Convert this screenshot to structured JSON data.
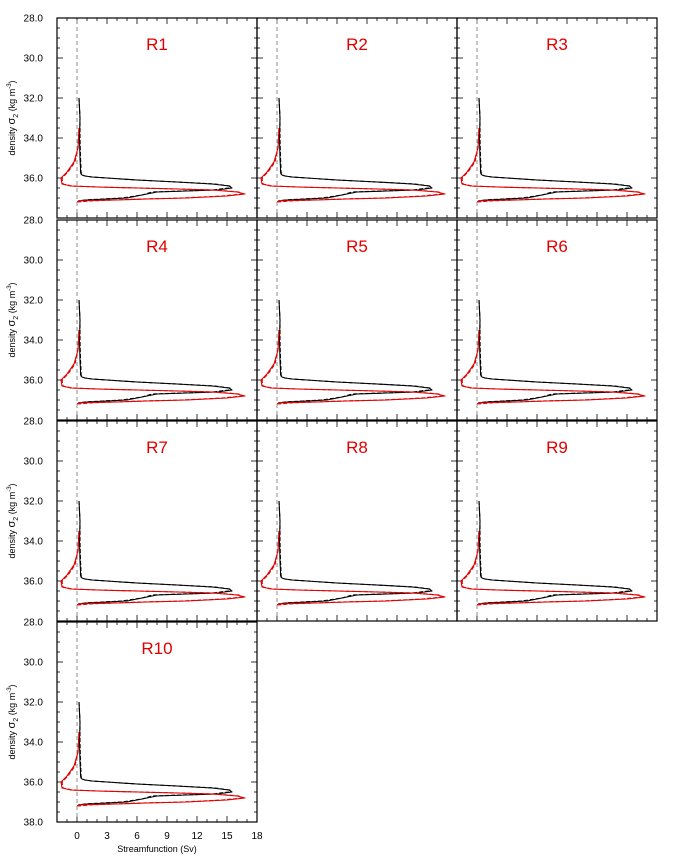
{
  "figure": {
    "ylabel_prefix": "density ",
    "ylabel_symbol": "σ",
    "ylabel_subscript": "2",
    "ylabel_units": " (kg m",
    "ylabel_exponent": "-3",
    "ylabel_close": ")",
    "xlabel": "Streamfunction (Sv)"
  },
  "chart_data": {
    "type": "line",
    "panels": [
      "R1",
      "R2",
      "R3",
      "R4",
      "R5",
      "R6",
      "R7",
      "R8",
      "R9",
      "R10"
    ],
    "xlim": [
      -2,
      18
    ],
    "ylim": [
      38.0,
      28.0
    ],
    "y_inverted": true,
    "xticks": [
      0,
      3,
      6,
      9,
      12,
      15,
      18
    ],
    "yticks": [
      28.0,
      30.0,
      32.0,
      34.0,
      36.0,
      38.0
    ],
    "xtick_labels": [
      "0",
      "3",
      "6",
      "9",
      "12",
      "15",
      "18"
    ],
    "ytick_labels": [
      "28.0",
      "30.0",
      "32.0",
      "34.0",
      "36.0",
      "38.0"
    ],
    "zero_line": {
      "x": 0,
      "style": "dashed",
      "color": "#808080"
    },
    "series": [
      {
        "color": "#000000",
        "style": "solid",
        "x": [
          0.2,
          0.3,
          0.25,
          0.3,
          0.35,
          0.35,
          0.4,
          0.5,
          0.8,
          1.5,
          3.0,
          6.0,
          10.0,
          13.5,
          15.2,
          15.5,
          14.0,
          11.0,
          8.0,
          7.0,
          5.0,
          3.0,
          1.0,
          0.1
        ],
        "y": [
          32.0,
          33.0,
          34.0,
          35.0,
          35.5,
          35.7,
          35.8,
          35.85,
          35.9,
          35.95,
          36.0,
          36.1,
          36.2,
          36.3,
          36.4,
          36.5,
          36.6,
          36.65,
          36.7,
          36.8,
          37.0,
          37.05,
          37.1,
          37.15
        ]
      },
      {
        "color": "#000000",
        "style": "dashed",
        "x": [
          0.2,
          0.3,
          0.3,
          0.35,
          0.4,
          0.4,
          0.5,
          0.8,
          1.5,
          3.0,
          6.0,
          10.0,
          13.8,
          15.3,
          15.2,
          13.5,
          10.5,
          7.5,
          6.5,
          4.5,
          2.5,
          0.8,
          0.1
        ],
        "y": [
          32.0,
          33.0,
          34.0,
          35.0,
          35.5,
          35.7,
          35.85,
          35.9,
          35.95,
          36.0,
          36.1,
          36.2,
          36.3,
          36.4,
          36.5,
          36.6,
          36.65,
          36.7,
          36.85,
          37.0,
          37.05,
          37.1,
          37.15
        ]
      },
      {
        "color": "#e00000",
        "style": "solid",
        "x": [
          0.2,
          0.1,
          -0.3,
          -1.0,
          -1.6,
          -1.5,
          -0.6,
          2.0,
          6.0,
          10.0,
          13.5,
          16.0,
          16.8,
          15.0,
          11.0,
          7.0,
          4.0,
          1.5,
          0.2,
          0.0
        ],
        "y": [
          33.5,
          34.5,
          35.2,
          35.7,
          36.0,
          36.3,
          36.4,
          36.45,
          36.5,
          36.55,
          36.6,
          36.7,
          36.8,
          36.9,
          37.0,
          37.05,
          37.1,
          37.12,
          37.15,
          37.2
        ]
      },
      {
        "color": "#e00000",
        "style": "dashed",
        "x": [
          0.2,
          0.1,
          -0.2,
          -0.9,
          -1.5,
          -1.4,
          -0.5,
          2.2,
          6.2,
          10.2,
          13.8,
          16.2,
          16.5,
          14.5,
          10.5,
          6.5,
          3.5,
          1.2,
          0.1
        ],
        "y": [
          33.5,
          34.5,
          35.2,
          35.7,
          36.0,
          36.3,
          36.4,
          36.45,
          36.5,
          36.55,
          36.6,
          36.7,
          36.8,
          36.9,
          37.0,
          37.05,
          37.1,
          37.15,
          37.2
        ]
      }
    ]
  }
}
